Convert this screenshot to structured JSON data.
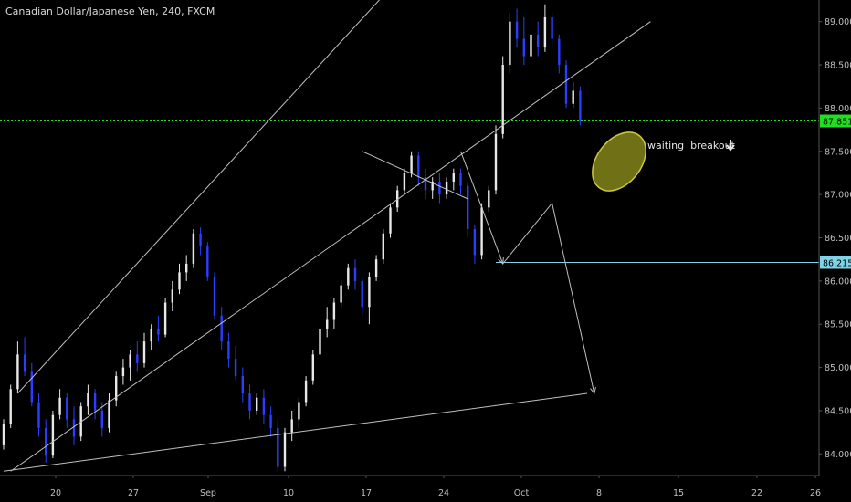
{
  "chart_data": {
    "type": "candlestick",
    "title": "Canadian Dollar/Japanese Yen, 240, FXCM",
    "ylim": [
      83.75,
      89.25
    ],
    "y_ticks": [
      "89.000",
      "88.500",
      "88.000",
      "87.500",
      "87.000",
      "86.500",
      "86.000",
      "85.500",
      "85.000",
      "84.500",
      "84.000"
    ],
    "x_ticks": [
      "20",
      "27",
      "Sep",
      "10",
      "17",
      "24",
      "Oct",
      "8",
      "15",
      "22",
      "26"
    ],
    "price_labels": [
      {
        "value": 87.851,
        "text": "87.851",
        "color": "#22dd22"
      },
      {
        "value": 86.215,
        "text": "86.215",
        "color": "#7fd3e6"
      }
    ],
    "annotation": "waiting  breakout",
    "annotation_arrow": "down-arrow-icon",
    "grid": false,
    "colors": {
      "background": "#000000",
      "up": "#e8e8e8",
      "down": "#2d3cff",
      "lines": "#c0c0c0",
      "ellipse": "#9a9a28"
    },
    "series": [
      {
        "values": [
          [
            84.1,
            84.4,
            84.05,
            84.35
          ],
          [
            84.35,
            84.8,
            84.3,
            84.75
          ],
          [
            84.75,
            85.3,
            84.7,
            85.15
          ],
          [
            85.15,
            85.35,
            84.9,
            84.95
          ],
          [
            84.95,
            85.05,
            84.55,
            84.6
          ],
          [
            84.6,
            84.7,
            84.2,
            84.3
          ],
          [
            84.3,
            84.4,
            83.9,
            83.98
          ],
          [
            83.98,
            84.5,
            83.95,
            84.45
          ],
          [
            84.45,
            84.75,
            84.4,
            84.65
          ],
          [
            84.65,
            84.7,
            84.3,
            84.4
          ],
          [
            84.4,
            84.55,
            84.1,
            84.2
          ],
          [
            84.2,
            84.6,
            84.15,
            84.55
          ],
          [
            84.55,
            84.8,
            84.45,
            84.7
          ],
          [
            84.7,
            84.75,
            84.4,
            84.5
          ],
          [
            84.5,
            84.6,
            84.2,
            84.3
          ],
          [
            84.3,
            84.7,
            84.25,
            84.62
          ],
          [
            84.62,
            84.95,
            84.55,
            84.9
          ],
          [
            84.9,
            85.1,
            84.8,
            85.0
          ],
          [
            85.0,
            85.2,
            84.85,
            85.15
          ],
          [
            85.15,
            85.3,
            84.95,
            85.05
          ],
          [
            85.05,
            85.4,
            85.0,
            85.3
          ],
          [
            85.3,
            85.5,
            85.2,
            85.45
          ],
          [
            85.45,
            85.6,
            85.3,
            85.38
          ],
          [
            85.38,
            85.8,
            85.35,
            85.75
          ],
          [
            85.75,
            86.0,
            85.65,
            85.9
          ],
          [
            85.9,
            86.2,
            85.85,
            86.1
          ],
          [
            86.1,
            86.3,
            86.0,
            86.2
          ],
          [
            86.2,
            86.6,
            86.15,
            86.55
          ],
          [
            86.55,
            86.62,
            86.3,
            86.4
          ],
          [
            86.4,
            86.45,
            86.0,
            86.05
          ],
          [
            86.05,
            86.1,
            85.55,
            85.6
          ],
          [
            85.6,
            85.7,
            85.2,
            85.3
          ],
          [
            85.3,
            85.4,
            85.0,
            85.1
          ],
          [
            85.1,
            85.25,
            84.85,
            84.9
          ],
          [
            84.9,
            85.0,
            84.6,
            84.7
          ],
          [
            84.7,
            84.8,
            84.4,
            84.5
          ],
          [
            84.5,
            84.7,
            84.45,
            84.65
          ],
          [
            84.65,
            84.75,
            84.35,
            84.45
          ],
          [
            84.45,
            84.55,
            84.2,
            84.3
          ],
          [
            84.3,
            84.4,
            83.8,
            83.85
          ],
          [
            83.85,
            84.3,
            83.8,
            84.25
          ],
          [
            84.25,
            84.5,
            84.15,
            84.4
          ],
          [
            84.4,
            84.65,
            84.3,
            84.6
          ],
          [
            84.6,
            84.9,
            84.55,
            84.85
          ],
          [
            84.85,
            85.2,
            84.8,
            85.15
          ],
          [
            85.15,
            85.5,
            85.1,
            85.45
          ],
          [
            85.45,
            85.7,
            85.35,
            85.55
          ],
          [
            85.55,
            85.8,
            85.45,
            85.75
          ],
          [
            85.75,
            86.0,
            85.7,
            85.95
          ],
          [
            85.95,
            86.2,
            85.9,
            86.15
          ],
          [
            86.15,
            86.25,
            85.9,
            86.0
          ],
          [
            86.0,
            86.05,
            85.6,
            85.7
          ],
          [
            85.7,
            86.1,
            85.5,
            86.05
          ],
          [
            86.05,
            86.3,
            86.0,
            86.25
          ],
          [
            86.25,
            86.6,
            86.2,
            86.55
          ],
          [
            86.55,
            86.9,
            86.5,
            86.85
          ],
          [
            86.85,
            87.1,
            86.8,
            87.05
          ],
          [
            87.05,
            87.3,
            87.0,
            87.25
          ],
          [
            87.25,
            87.5,
            87.2,
            87.45
          ],
          [
            87.45,
            87.5,
            87.1,
            87.2
          ],
          [
            87.2,
            87.3,
            86.95,
            87.05
          ],
          [
            87.05,
            87.2,
            86.95,
            87.15
          ],
          [
            87.15,
            87.25,
            86.9,
            87.0
          ],
          [
            87.0,
            87.2,
            86.95,
            87.15
          ],
          [
            87.15,
            87.3,
            87.05,
            87.25
          ],
          [
            87.25,
            87.3,
            87.0,
            87.1
          ],
          [
            87.1,
            87.15,
            86.5,
            86.6
          ],
          [
            86.6,
            86.65,
            86.2,
            86.3
          ],
          [
            86.3,
            86.9,
            86.25,
            86.85
          ],
          [
            86.85,
            87.1,
            86.8,
            87.05
          ],
          [
            87.05,
            87.8,
            87.0,
            87.7
          ],
          [
            87.7,
            88.6,
            87.65,
            88.5
          ],
          [
            88.5,
            89.1,
            88.4,
            89.0
          ],
          [
            89.0,
            89.15,
            88.7,
            88.8
          ],
          [
            88.8,
            89.05,
            88.5,
            88.6
          ],
          [
            88.6,
            88.9,
            88.5,
            88.85
          ],
          [
            88.85,
            89.0,
            88.6,
            88.7
          ],
          [
            88.7,
            89.2,
            88.65,
            89.05
          ],
          [
            89.05,
            89.1,
            88.7,
            88.8
          ],
          [
            88.8,
            88.85,
            88.4,
            88.5
          ],
          [
            88.5,
            88.55,
            88.0,
            88.05
          ],
          [
            88.05,
            88.3,
            88.0,
            88.2
          ],
          [
            88.2,
            88.25,
            87.8,
            87.85
          ]
        ]
      }
    ],
    "trendlines": [
      {
        "from": [
          0,
          83.8
        ],
        "to": [
          83,
          84.7
        ]
      },
      {
        "from": [
          2,
          84.7
        ],
        "to": [
          54,
          89.3
        ]
      },
      {
        "from": [
          1,
          83.8
        ],
        "to": [
          92,
          89.0
        ]
      },
      {
        "from": [
          51,
          87.5
        ],
        "to": [
          66,
          86.95
        ]
      }
    ],
    "projection_path": [
      [
        65,
        87.5
      ],
      [
        71,
        86.2
      ],
      [
        78,
        86.9
      ],
      [
        84,
        84.7
      ]
    ]
  }
}
